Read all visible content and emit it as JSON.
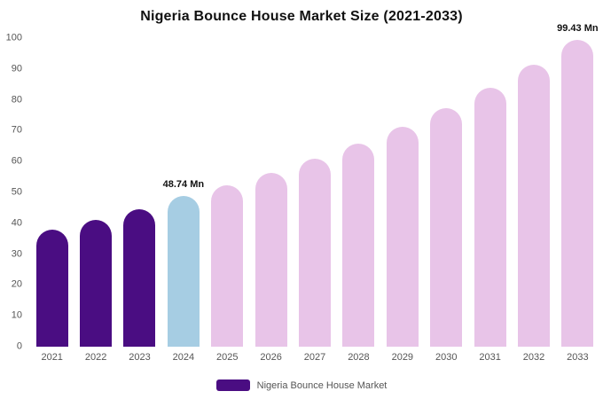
{
  "title": "Nigeria Bounce House Market Size (2021-2033)",
  "legend": {
    "label": "Nigeria Bounce House Market",
    "swatch_color": "#4a0d82"
  },
  "chart_data": {
    "type": "bar",
    "title": "Nigeria Bounce House Market Size (2021-2033)",
    "categories": [
      "2021",
      "2022",
      "2023",
      "2024",
      "2025",
      "2026",
      "2027",
      "2028",
      "2029",
      "2030",
      "2031",
      "2032",
      "2033"
    ],
    "values": [
      37.9,
      41.2,
      44.6,
      48.74,
      52.2,
      56.3,
      61.0,
      65.9,
      71.3,
      77.3,
      83.9,
      91.4,
      99.43
    ],
    "unit": "Mn",
    "bar_colors": [
      "#4a0d82",
      "#4a0d82",
      "#4a0d82",
      "#a6cde3",
      "#e8c4e8",
      "#e8c4e8",
      "#e8c4e8",
      "#e8c4e8",
      "#e8c4e8",
      "#e8c4e8",
      "#e8c4e8",
      "#e8c4e8",
      "#e8c4e8"
    ],
    "annotations": [
      {
        "category": "2024",
        "text": "48.74 Mn"
      },
      {
        "category": "2033",
        "text": "99.43 Mn"
      }
    ],
    "xlabel": "",
    "ylabel": "",
    "ylim": [
      0,
      100
    ],
    "yticks": [
      0,
      10,
      20,
      30,
      40,
      50,
      60,
      70,
      80,
      90,
      100
    ],
    "grid": false,
    "legend_position": "bottom",
    "legend_entries": [
      "Nigeria Bounce House Market"
    ]
  }
}
